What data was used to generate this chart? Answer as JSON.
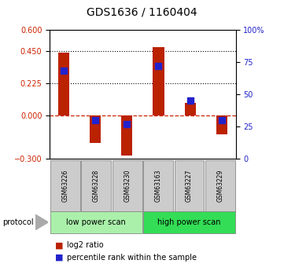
{
  "title": "GDS1636 / 1160404",
  "samples": [
    "GSM63226",
    "GSM63228",
    "GSM63230",
    "GSM63163",
    "GSM63227",
    "GSM63229"
  ],
  "log2_ratio": [
    0.44,
    -0.19,
    -0.28,
    0.48,
    0.09,
    -0.13
  ],
  "percentile_rank_pct": [
    68,
    30,
    27,
    72,
    45,
    30
  ],
  "ylim_left": [
    -0.3,
    0.6
  ],
  "ylim_right": [
    0,
    100
  ],
  "yticks_left": [
    -0.3,
    0,
    0.225,
    0.45,
    0.6
  ],
  "yticks_right": [
    0,
    25,
    50,
    75,
    100
  ],
  "ytick_right_labels": [
    "0",
    "25",
    "50",
    "75",
    "100%"
  ],
  "hlines_dotted": [
    0.225,
    0.45
  ],
  "protocol_groups": [
    {
      "label": "low power scan",
      "indices": [
        0,
        1,
        2
      ],
      "color": "#aaf0aa"
    },
    {
      "label": "high power scan",
      "indices": [
        3,
        4,
        5
      ],
      "color": "#33dd55"
    }
  ],
  "bar_color": "#BB2200",
  "dot_color": "#2222CC",
  "left_axis_color": "#CC2200",
  "right_axis_color": "#2222CC",
  "sample_box_color": "#CCCCCC",
  "sample_box_edge": "#888888",
  "bar_width": 0.35
}
